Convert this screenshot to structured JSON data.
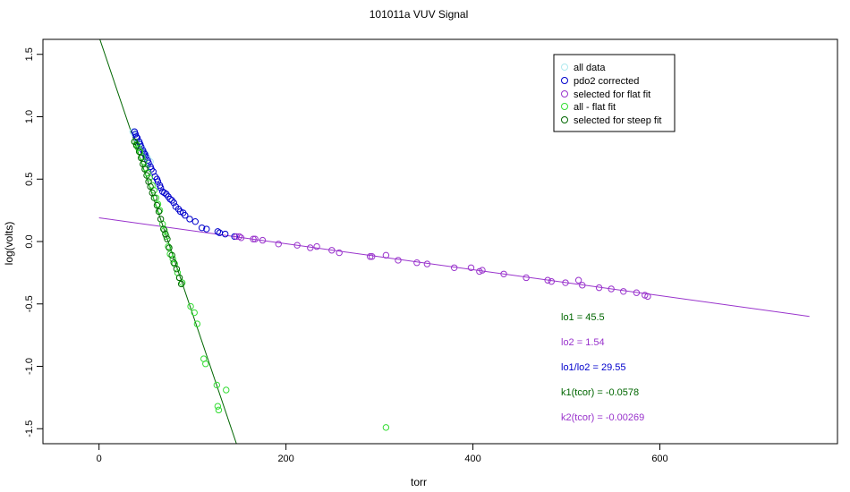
{
  "chart_data": {
    "type": "scatter",
    "title": "101011a   VUV Signal",
    "xlabel": "torr",
    "ylabel": "log(volts)",
    "xlim": [
      -60,
      790
    ],
    "ylim": [
      -1.62,
      1.62
    ],
    "xticks": [
      0,
      200,
      400,
      600
    ],
    "xtick_labels": [
      "0",
      "200",
      "400",
      "600"
    ],
    "yticks": [
      -1.5,
      -1.0,
      -0.5,
      0.0,
      0.5,
      1.0,
      1.5
    ],
    "ytick_labels": [
      "-1.5",
      "-1.0",
      "-0.5",
      "0.0",
      "0.5",
      "1.0",
      "1.5"
    ],
    "grid": false,
    "legend_position": "top-right",
    "legend": [
      {
        "label": "all data",
        "color": "#aee9ee"
      },
      {
        "label": "pdo2 corrected",
        "color": "#0000cc"
      },
      {
        "label": "selected for flat fit",
        "color": "#9933cc"
      },
      {
        "label": "all - flat fit",
        "color": "#33dd33"
      },
      {
        "label": "selected for steep fit",
        "color": "#006600"
      }
    ],
    "series": [
      {
        "name": "all data",
        "color": "#aee9ee",
        "x": [
          36,
          38,
          40,
          42,
          44,
          46,
          48,
          50,
          52,
          55
        ],
        "y": [
          0.88,
          0.86,
          0.83,
          0.8,
          0.78,
          0.75,
          0.72,
          0.7,
          0.67,
          0.64
        ]
      },
      {
        "name": "pdo2 corrected",
        "color": "#0000cc",
        "x": [
          38,
          39,
          40,
          41,
          43,
          44,
          45,
          47,
          48,
          49,
          50,
          52,
          53,
          55,
          56,
          58,
          60,
          62,
          63,
          65,
          66,
          68,
          70,
          72,
          74,
          76,
          78,
          80,
          82,
          85,
          87,
          90,
          92,
          97,
          103,
          110,
          115,
          127,
          129,
          135,
          145
        ],
        "y": [
          0.88,
          0.86,
          0.84,
          0.83,
          0.8,
          0.78,
          0.76,
          0.73,
          0.71,
          0.7,
          0.68,
          0.65,
          0.63,
          0.6,
          0.58,
          0.56,
          0.52,
          0.5,
          0.48,
          0.45,
          0.43,
          0.4,
          0.39,
          0.38,
          0.36,
          0.34,
          0.33,
          0.31,
          0.28,
          0.26,
          0.24,
          0.23,
          0.21,
          0.18,
          0.16,
          0.11,
          0.1,
          0.08,
          0.07,
          0.06,
          0.04
        ]
      },
      {
        "name": "selected for flat fit",
        "color": "#9933cc",
        "x": [
          147,
          150,
          152,
          165,
          167,
          175,
          192,
          212,
          226,
          233,
          249,
          257,
          290,
          292,
          307,
          320,
          340,
          351,
          380,
          398,
          407,
          410,
          433,
          457,
          480,
          484,
          499,
          513,
          517,
          535,
          548,
          561,
          575,
          584,
          587
        ],
        "y": [
          0.04,
          0.04,
          0.03,
          0.02,
          0.02,
          0.01,
          -0.02,
          -0.03,
          -0.05,
          -0.04,
          -0.07,
          -0.09,
          -0.12,
          -0.12,
          -0.11,
          -0.15,
          -0.17,
          -0.18,
          -0.21,
          -0.21,
          -0.24,
          -0.23,
          -0.26,
          -0.29,
          -0.31,
          -0.32,
          -0.33,
          -0.31,
          -0.35,
          -0.37,
          -0.38,
          -0.4,
          -0.41,
          -0.43,
          -0.44
        ]
      },
      {
        "name": "all - flat fit",
        "color": "#33dd33",
        "x": [
          38,
          40,
          42,
          44,
          46,
          48,
          50,
          52,
          54,
          57,
          59,
          61,
          63,
          65,
          68,
          70,
          72,
          74,
          76,
          79,
          81,
          84,
          86,
          89,
          98,
          102,
          105,
          112,
          114,
          126,
          127,
          128,
          136,
          307
        ],
        "y": [
          0.8,
          0.78,
          0.75,
          0.72,
          0.68,
          0.64,
          0.59,
          0.55,
          0.51,
          0.45,
          0.41,
          0.35,
          0.3,
          0.25,
          0.14,
          0.09,
          0.04,
          -0.04,
          -0.1,
          -0.14,
          -0.18,
          -0.25,
          -0.29,
          -0.33,
          -0.52,
          -0.57,
          -0.66,
          -0.94,
          -0.98,
          -1.15,
          -1.32,
          -1.35,
          -1.19,
          -1.49
        ]
      },
      {
        "name": "selected for steep fit",
        "color": "#006600",
        "x": [
          38,
          40,
          43,
          45,
          47,
          49,
          51,
          53,
          55,
          57,
          59,
          62,
          64,
          66,
          69,
          71,
          73,
          75,
          78,
          80,
          83,
          86,
          88
        ],
        "y": [
          0.8,
          0.77,
          0.72,
          0.67,
          0.62,
          0.58,
          0.53,
          0.48,
          0.44,
          0.39,
          0.35,
          0.29,
          0.24,
          0.18,
          0.1,
          0.06,
          0.02,
          -0.05,
          -0.11,
          -0.17,
          -0.22,
          -0.29,
          -0.34
        ]
      }
    ],
    "fit_lines": [
      {
        "name": "flat fit",
        "color": "#9933cc",
        "x": [
          0,
          760
        ],
        "y": [
          0.19,
          -0.6
        ]
      },
      {
        "name": "steep fit",
        "color": "#006600",
        "x": [
          0,
          147
        ],
        "y": [
          1.64,
          -1.62
        ]
      }
    ],
    "annotations": [
      {
        "text": "lo1 =  45.5",
        "color": "#006600"
      },
      {
        "text": "lo2 =  1.54",
        "color": "#9933cc"
      },
      {
        "text": "lo1/lo2 =  29.55",
        "color": "#0000cc"
      },
      {
        "text": "k1(tcor) =  -0.0578",
        "color": "#006600"
      },
      {
        "text": "k2(tcor) =  -0.00269",
        "color": "#9933cc"
      }
    ]
  }
}
